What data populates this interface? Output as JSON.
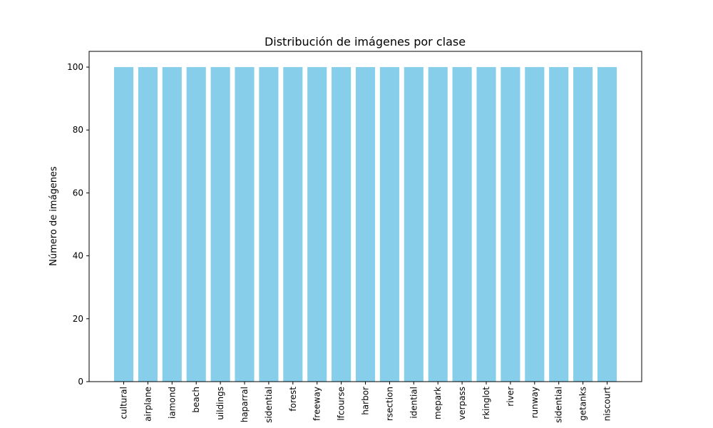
{
  "chart_data": {
    "type": "bar",
    "title": "Distribución de imágenes por clase",
    "xlabel": "",
    "ylabel": "Número de imágenes",
    "categories": [
      "cultural",
      "airplane",
      "iamond",
      "beach",
      "uildings",
      "haparral",
      "sidential",
      "forest",
      "freeway",
      "lfcourse",
      "harbor",
      "rsection",
      "idential",
      "mepark",
      "verpass",
      "rkinglot",
      "river",
      "runway",
      "sidential",
      "getanks",
      "niscourt"
    ],
    "values": [
      100,
      100,
      100,
      100,
      100,
      100,
      100,
      100,
      100,
      100,
      100,
      100,
      100,
      100,
      100,
      100,
      100,
      100,
      100,
      100,
      100
    ],
    "ylim": [
      0,
      105
    ],
    "yticks": [
      0,
      20,
      40,
      60,
      80,
      100
    ],
    "grid": false,
    "legend": "none",
    "bar_color": "#87ceeb",
    "axis_color": "#000000"
  }
}
